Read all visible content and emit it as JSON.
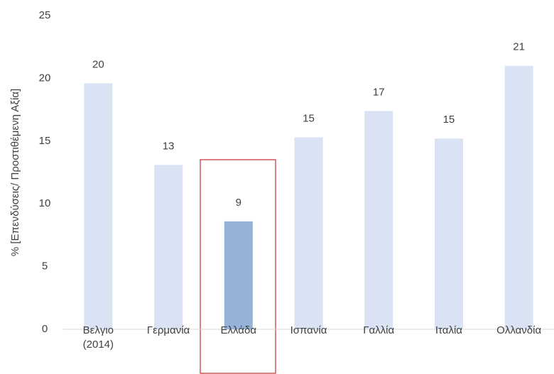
{
  "chart_data": {
    "type": "bar",
    "y_label": "% [Επενδύσεις/ Προστιθέμενη Αξία]",
    "categories": [
      "Βελγιο (2014)",
      "Γερμανία",
      "Ελλάδα",
      "Ισπανία",
      "Γαλλία",
      "Ιταλία",
      "Ολλανδία"
    ],
    "values": [
      19.6,
      13.1,
      8.6,
      15.3,
      17.4,
      15.2,
      21.0
    ],
    "value_labels": [
      "20",
      "13",
      "9",
      "15",
      "17",
      "15",
      "21"
    ],
    "colors": [
      "#dae3f3",
      "#dae3f3",
      "#95b3d7",
      "#dae3f3",
      "#dae3f3",
      "#dae3f3",
      "#dae3f3"
    ],
    "ylim": [
      0,
      25
    ],
    "yticks": [
      0,
      5,
      10,
      15,
      20,
      25
    ],
    "grid": false
  }
}
